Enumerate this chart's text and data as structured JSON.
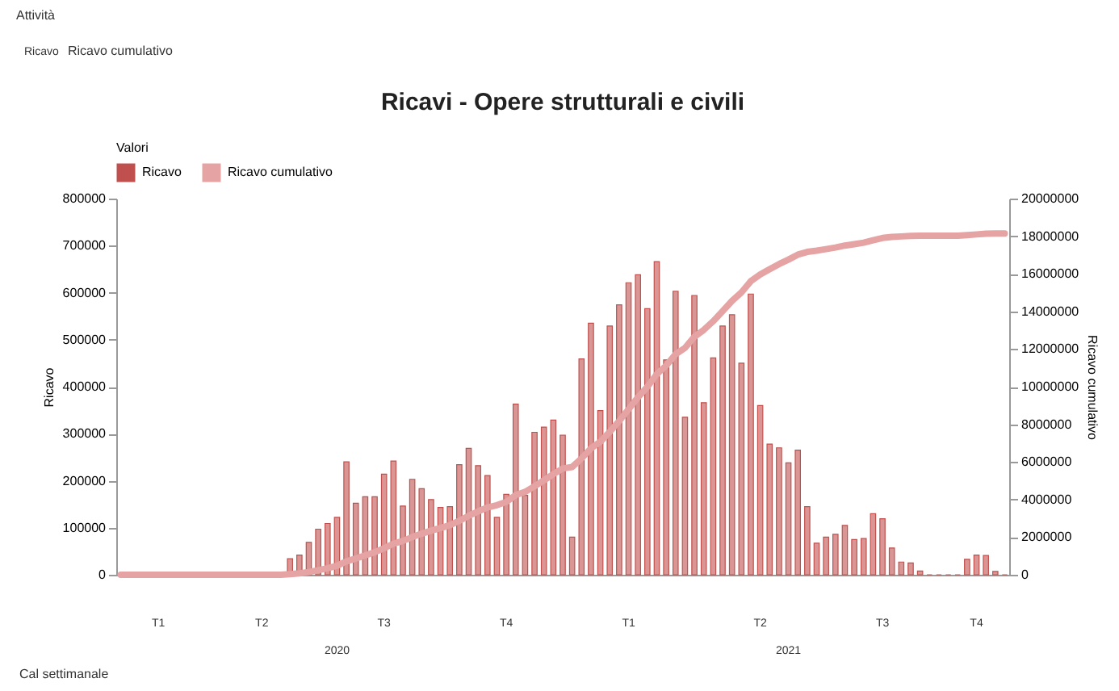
{
  "chart_data": {
    "type": "bar",
    "title": "Ricavi - Opere strutturali e civili",
    "categories": [
      null,
      null,
      null,
      null,
      null,
      null,
      null,
      null,
      null,
      null,
      null,
      null,
      null,
      null,
      null,
      null,
      null,
      null,
      null,
      null,
      null,
      null,
      null,
      null,
      null,
      null,
      null,
      null,
      null,
      null,
      null,
      null,
      null,
      null,
      null,
      null,
      null,
      null,
      null,
      null,
      null,
      null,
      null,
      null,
      null,
      null,
      null,
      null,
      null,
      null,
      null,
      null,
      null,
      null,
      null,
      null,
      null,
      null,
      null,
      null,
      null,
      null,
      null,
      null,
      null,
      null,
      null,
      null,
      null,
      null,
      null,
      null,
      null,
      null,
      null,
      null,
      null,
      null,
      null,
      null,
      null,
      null,
      null,
      null,
      null,
      null,
      null,
      null,
      null,
      null,
      null,
      null,
      null,
      null,
      null
    ],
    "series": [
      {
        "name": "Ricavo",
        "color": "#c0504d",
        "values": [
          0,
          0,
          0,
          0,
          0,
          0,
          0,
          0,
          0,
          0,
          0,
          0,
          0,
          0,
          0,
          0,
          0,
          0,
          34000,
          42000,
          69000,
          97000,
          109000,
          122000,
          240000,
          152000,
          166000,
          166000,
          214000,
          242000,
          146000,
          203000,
          183000,
          160000,
          143000,
          145000,
          234000,
          269000,
          232000,
          211000,
          122000,
          171000,
          363000,
          169000,
          303000,
          314000,
          329000,
          297000,
          80000,
          459000,
          535000,
          349000,
          529000,
          574000,
          621000,
          638000,
          566000,
          666000,
          457000,
          603000,
          335000,
          594000,
          366000,
          461000,
          529000,
          553000,
          450000,
          597000,
          360000,
          278000,
          270000,
          238000,
          265000,
          145000,
          67000,
          80000,
          86000,
          105000,
          75000,
          77000,
          130000,
          119000,
          57000,
          27000,
          25000,
          8000,
          0,
          0,
          0,
          0,
          33000,
          42000,
          41000,
          7000,
          0
        ]
      },
      {
        "name": "Ricavo cumulativo",
        "type": "line",
        "axis": "y2",
        "color": "#e6a3a3",
        "values": [
          0,
          0,
          0,
          0,
          0,
          0,
          0,
          0,
          0,
          0,
          0,
          0,
          0,
          0,
          0,
          0,
          0,
          0,
          34000,
          76000,
          145000,
          242000,
          351000,
          473000,
          713000,
          865000,
          1031000,
          1197000,
          1411000,
          1653000,
          1799000,
          2002000,
          2185000,
          2345000,
          2488000,
          2633000,
          2867000,
          3136000,
          3368000,
          3579000,
          3701000,
          3872000,
          4235000,
          4404000,
          4707000,
          5021000,
          5350000,
          5647000,
          5727000,
          6186000,
          6721000,
          7070000,
          7599000,
          8173000,
          8794000,
          9432000,
          9998000,
          10664000,
          11121000,
          11724000,
          12059000,
          12653000,
          13019000,
          13480000,
          14009000,
          14562000,
          15012000,
          15609000,
          15969000,
          16247000,
          16517000,
          16755000,
          17020000,
          17165000,
          17232000,
          17312000,
          17398000,
          17503000,
          17578000,
          17655000,
          17785000,
          17904000,
          17961000,
          17988000,
          18013000,
          18021000,
          18021000,
          18021000,
          18021000,
          18021000,
          18054000,
          18096000,
          18137000,
          18144000,
          18144000
        ]
      }
    ],
    "ylabel": "Ricavo",
    "y2label": "Ricavo cumulativo",
    "ylim": [
      0,
      800000
    ],
    "yticks": [
      0,
      100000,
      200000,
      300000,
      400000,
      500000,
      600000,
      700000,
      800000
    ],
    "y2lim": [
      0,
      20000000
    ],
    "y2ticks": [
      0,
      2000000,
      4000000,
      6000000,
      8000000,
      10000000,
      12000000,
      14000000,
      16000000,
      18000000,
      20000000
    ],
    "legend": "top",
    "legend_title": "Valori",
    "grid": false,
    "annotations": [
      "Attività",
      "Ricavo",
      "Ricavo cumulativo",
      "Cal settimanale",
      "T1",
      "T2",
      "T3",
      "T4",
      "T1",
      "T2",
      "T3",
      "T4",
      "2020",
      "2021"
    ]
  }
}
